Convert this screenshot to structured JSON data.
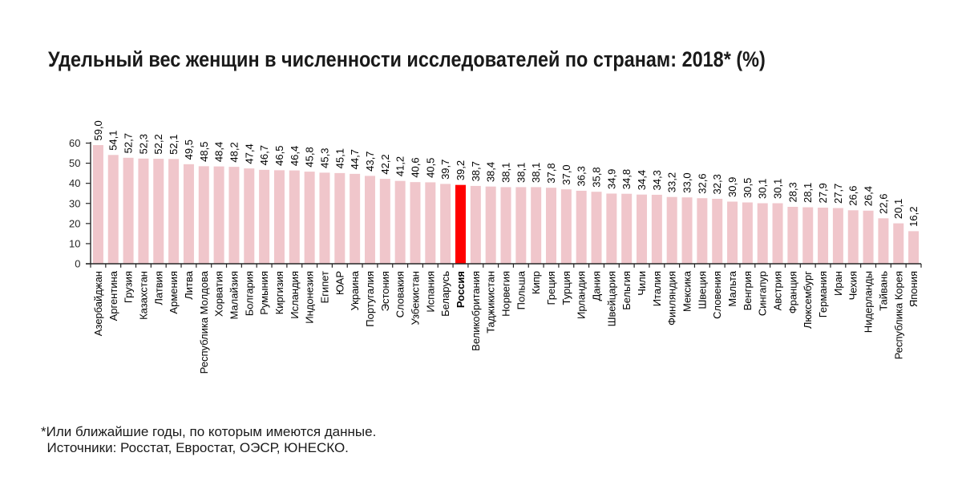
{
  "title": "Удельный вес женщин в численности исследователей по странам: 2018* (%)",
  "footnotes": {
    "note": "*Или ближайшие годы, по которым имеются данные.",
    "sources": "Источники: Росстат, Евростат, ОЭСР, ЮНЕСКО."
  },
  "colors": {
    "bar": "#f0c6cb",
    "highlight_bar": "#ff0000",
    "axis": "#262626",
    "label_text": "#000000",
    "tick_text": "#262626"
  },
  "chart_data": {
    "type": "bar",
    "title": "Удельный вес женщин в численности исследователей по странам: 2018* (%)",
    "xlabel": "",
    "ylabel": "",
    "ylim": [
      0,
      60
    ],
    "yticks": [
      0,
      10,
      20,
      30,
      40,
      50,
      60
    ],
    "grid": false,
    "legend": false,
    "value_label_decimal": "comma",
    "highlight_category": "Россия",
    "categories": [
      "Азербайджан",
      "Аргентина",
      "Грузия",
      "Казахстан",
      "Латвия",
      "Армения",
      "Литва",
      "Республика Молдова",
      "Хорватия",
      "Малайзия",
      "Болгария",
      "Румыния",
      "Киргизия",
      "Исландия",
      "Индонезия",
      "Египет",
      "ЮАР",
      "Украина",
      "Португалия",
      "Эстония",
      "Словакия",
      "Узбекистан",
      "Испания",
      "Беларусь",
      "Россия",
      "Великобритания",
      "Таджикистан",
      "Норвегия",
      "Польша",
      "Кипр",
      "Греция",
      "Турция",
      "Ирландия",
      "Дания",
      "Швейцария",
      "Бельгия",
      "Чили",
      "Италия",
      "Финляндия",
      "Мексика",
      "Швеция",
      "Словения",
      "Мальта",
      "Венгрия",
      "Сингапур",
      "Австрия",
      "Франция",
      "Люксембург",
      "Германия",
      "Иран",
      "Чехия",
      "Нидерланды",
      "Тайвань",
      "Республика Корея",
      "Япония"
    ],
    "values": [
      59.0,
      54.1,
      52.7,
      52.3,
      52.2,
      52.1,
      49.5,
      48.5,
      48.4,
      48.2,
      47.4,
      46.7,
      46.5,
      46.4,
      45.8,
      45.3,
      45.1,
      44.7,
      43.7,
      42.2,
      41.2,
      40.6,
      40.5,
      39.7,
      39.2,
      38.7,
      38.4,
      38.1,
      38.1,
      38.1,
      37.8,
      37.0,
      36.3,
      35.8,
      34.9,
      34.8,
      34.4,
      34.3,
      33.2,
      33.0,
      32.6,
      32.3,
      30.9,
      30.5,
      30.1,
      30.1,
      28.3,
      28.1,
      27.9,
      27.7,
      26.6,
      26.4,
      22.6,
      20.1,
      16.2
    ],
    "value_labels": [
      "59,0",
      "54,1",
      "52,7",
      "52,3",
      "52,2",
      "52,1",
      "49,5",
      "48,5",
      "48,4",
      "48,2",
      "47,4",
      "46,7",
      "46,5",
      "46,4",
      "45,8",
      "45,3",
      "45,1",
      "44,7",
      "43,7",
      "42,2",
      "41,2",
      "40,6",
      "40,5",
      "39,7",
      "39,2",
      "38,7",
      "38,4",
      "38,1",
      "38,1",
      "38,1",
      "37,8",
      "37,0",
      "36,3",
      "35,8",
      "34,9",
      "34,8",
      "34,4",
      "34,3",
      "33,2",
      "33,0",
      "32,6",
      "32,3",
      "30,9",
      "30,5",
      "30,1",
      "30,1",
      "28,3",
      "28,1",
      "27,9",
      "27,7",
      "26,6",
      "26,4",
      "22,6",
      "20,1",
      "16,2"
    ]
  }
}
